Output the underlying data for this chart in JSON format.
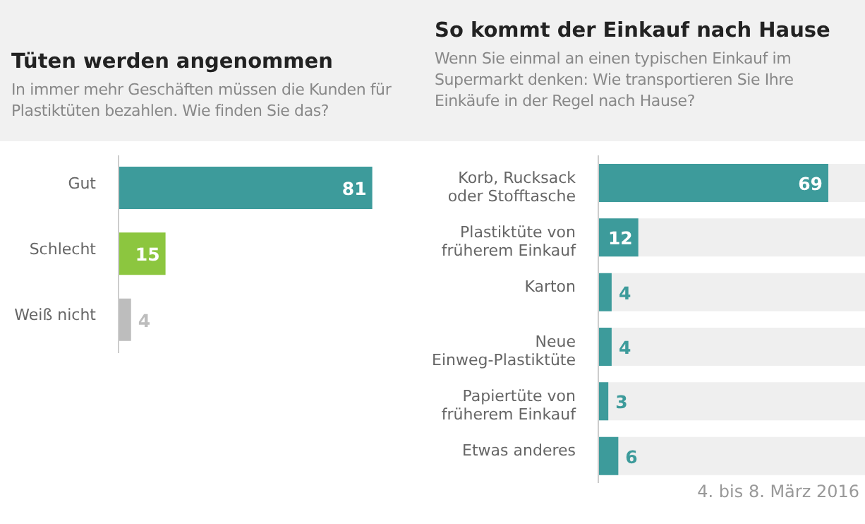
{
  "chart_data": [
    {
      "type": "bar",
      "orientation": "horizontal",
      "title": "Tüten werden angenommen",
      "subtitle": "In immer mehr Geschäften müssen die Kunden für Plastiktüten bezahlen. Wie finden Sie das?",
      "categories": [
        "Gut",
        "Schlecht",
        "Weiß nicht"
      ],
      "values": [
        81,
        15,
        4
      ],
      "colors": [
        "#3d9b9b",
        "#8cc63f",
        "#bdbdbd"
      ],
      "tick_labels": "y",
      "data_labels": true
    },
    {
      "type": "bar",
      "orientation": "horizontal",
      "title": "So kommt der Einkauf nach Hause",
      "subtitle": "Wenn Sie einmal an einen typischen Einkauf im Supermarkt denken: Wie transportieren Sie Ihre Einkäufe in der Regel nach Hause?",
      "categories": [
        "Korb, Rucksack oder Stofftasche",
        "Plastiktüte von früherem Einkauf",
        "Karton",
        "Neue Einweg-Plastiktüte",
        "Papiertüte von früherem Einkauf",
        "Etwas anderes"
      ],
      "values": [
        69,
        12,
        4,
        4,
        3,
        6
      ],
      "color": "#3d9b9b",
      "tick_labels": "y",
      "data_labels": true,
      "annotations": [
        "4. bis 8. März 2016"
      ]
    }
  ]
}
